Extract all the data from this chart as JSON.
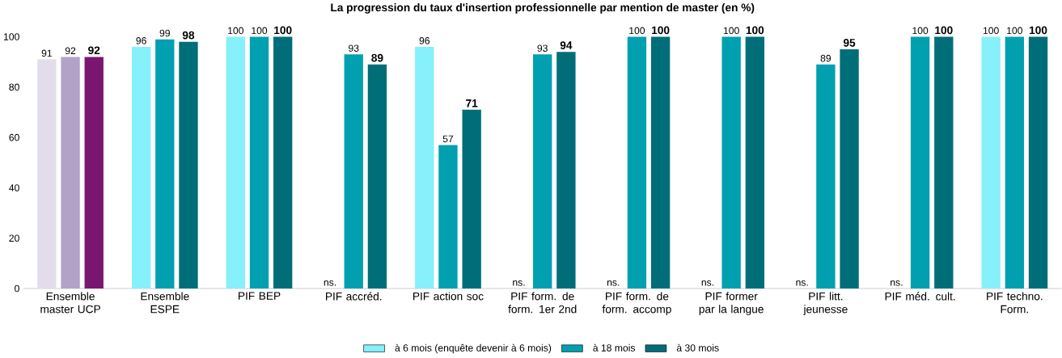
{
  "chart_data": {
    "type": "bar",
    "title": "La progression du taux d'insertion professionnelle  par mention de master (en %)",
    "categories": [
      "Ensemble master UCP",
      "Ensemble ESPE",
      "PIF BEP",
      "PIF accréd.",
      "PIF action soc",
      "PIF form. de form. 1er 2nd",
      "PIF form. de form. accomp",
      "PIF former par la langue",
      "PIF litt. jeunesse",
      "PIF méd. cult.",
      "PIF techno. Form."
    ],
    "series": [
      {
        "name": "à 6 mois (enquête devenir à 6 mois)",
        "color": "#86f0fb",
        "colors": [
          "#e3dcea",
          "#86f0fb",
          "#86f0fb",
          "#86f0fb",
          "#86f0fb",
          "#86f0fb",
          "#86f0fb",
          "#86f0fb",
          "#86f0fb",
          "#86f0fb",
          "#86f0fb"
        ],
        "values": [
          91,
          96,
          100,
          null,
          96,
          null,
          null,
          null,
          null,
          null,
          100
        ],
        "value_labels": [
          "91",
          "96",
          "100",
          "ns.",
          "96",
          "ns.",
          "ns.",
          "ns.",
          "ns.",
          "ns.",
          "100"
        ]
      },
      {
        "name": "à 18 mois",
        "color": "#00a0b0",
        "colors": [
          "#b3a2c8",
          "#00a0b0",
          "#00a0b0",
          "#00a0b0",
          "#00a0b0",
          "#00a0b0",
          "#00a0b0",
          "#00a0b0",
          "#00a0b0",
          "#00a0b0",
          "#00a0b0"
        ],
        "values": [
          92,
          99,
          100,
          93,
          57,
          93,
          100,
          100,
          89,
          100,
          100
        ],
        "value_labels": [
          "92",
          "99",
          "100",
          "93",
          "57",
          "93",
          "100",
          "100",
          "89",
          "100",
          "100"
        ]
      },
      {
        "name": "à 30 mois",
        "color": "#006e78",
        "colors": [
          "#7b1670",
          "#006e78",
          "#006e78",
          "#006e78",
          "#006e78",
          "#006e78",
          "#006e78",
          "#006e78",
          "#006e78",
          "#006e78",
          "#006e78"
        ],
        "values": [
          92,
          98,
          100,
          89,
          71,
          94,
          100,
          100,
          95,
          100,
          100
        ],
        "value_labels": [
          "92",
          "98",
          "100",
          "89",
          "71",
          "94",
          "100",
          "100",
          "95",
          "100",
          "100"
        ]
      }
    ],
    "ylim": [
      0,
      100
    ],
    "yticks": [
      0,
      20,
      40,
      60,
      80,
      100
    ],
    "grid": false,
    "legend": "bottom"
  }
}
